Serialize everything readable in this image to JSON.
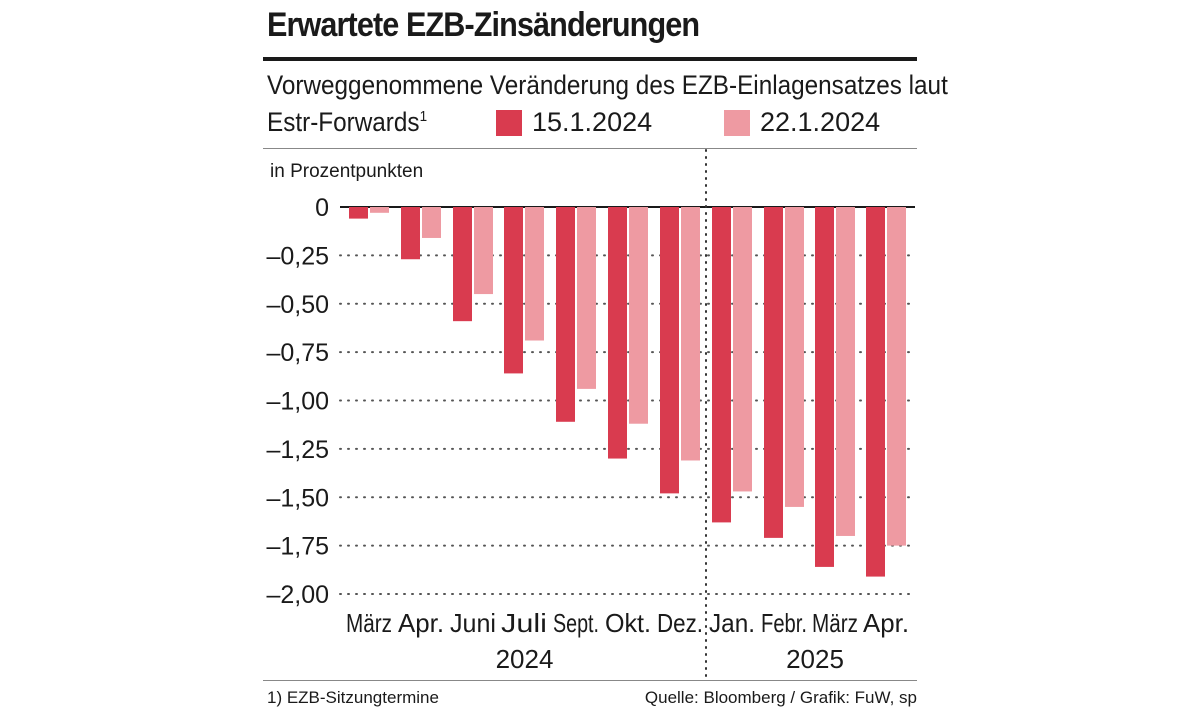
{
  "header": {
    "title": "Erwartete EZB-Zinsänderungen",
    "subtitle_line1": "Vorweggenommene Veränderung des EZB-Einlagensatzes laut",
    "subtitle_line2": "Estr-Forwards",
    "subtitle_footnote_mark": "1"
  },
  "footer": {
    "footnote": "1) EZB-Sitzungtermine",
    "source": "Quelle: Bloomberg / Grafik: FuW, sp"
  },
  "colors": {
    "series_a": "#d93b4f",
    "series_b": "#ee9aa2",
    "text": "#1a1a1a"
  },
  "chart_data": {
    "type": "bar",
    "ylabel": "in Prozentpunkten",
    "ylim": [
      -2.0,
      0
    ],
    "yticks": [
      0,
      -0.25,
      -0.5,
      -0.75,
      -1.0,
      -1.25,
      -1.5,
      -1.75,
      -2.0
    ],
    "ytick_labels": [
      "0",
      "–0,25",
      "–0,50",
      "–0,75",
      "–1,00",
      "–1,25",
      "–1,50",
      "–1,75",
      "–2,00"
    ],
    "grid": "horizontal-dotted",
    "legend": "top",
    "categories": [
      "März",
      "Apr.",
      "Juni",
      "Juli",
      "Sept.",
      "Okt.",
      "Dez.",
      "Jan.",
      "Febr.",
      "März",
      "Apr."
    ],
    "year_groups": [
      {
        "label": "2024",
        "start": 0,
        "end": 6
      },
      {
        "label": "2025",
        "start": 7,
        "end": 10
      }
    ],
    "series": [
      {
        "name": "15.1.2024",
        "values": [
          -0.06,
          -0.27,
          -0.59,
          -0.86,
          -1.11,
          -1.3,
          -1.48,
          -1.63,
          -1.71,
          -1.86,
          -1.91
        ]
      },
      {
        "name": "22.1.2024",
        "values": [
          -0.03,
          -0.16,
          -0.45,
          -0.69,
          -0.94,
          -1.12,
          -1.31,
          -1.47,
          -1.55,
          -1.7,
          -1.75
        ]
      }
    ]
  }
}
